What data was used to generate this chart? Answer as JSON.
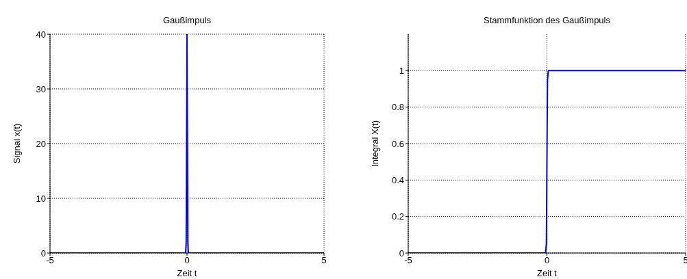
{
  "chart_data": [
    {
      "type": "line",
      "title": "Gaußimpuls",
      "xlabel": "Zeit t",
      "ylabel": "Signal x(t)",
      "x": [
        -5,
        -0.1,
        -0.05,
        -0.03,
        -0.015,
        0,
        0.015,
        0.03,
        0.05,
        0.1,
        5
      ],
      "series": [
        {
          "color": "#0000ff",
          "values": [
            0,
            0,
            0,
            2,
            20,
            40,
            20,
            2,
            0,
            0,
            0
          ]
        }
      ],
      "xlim": [
        -5,
        5
      ],
      "xticks": [
        -5,
        0,
        5
      ],
      "ylim": [
        0,
        40
      ],
      "yticks": [
        0,
        10,
        20,
        30,
        40
      ],
      "grid": true,
      "line_style": "solid",
      "marker": "none",
      "legend": false
    },
    {
      "type": "line",
      "title": "Stammfunktion des Gaußimpuls",
      "xlabel": "Zeit t",
      "ylabel": "Integral X(t)",
      "x": [
        -5,
        -0.05,
        -0.02,
        0,
        0.02,
        0.05,
        5
      ],
      "series": [
        {
          "color": "#0000ff",
          "values": [
            0,
            0,
            0.05,
            0.5,
            0.95,
            1,
            1
          ]
        }
      ],
      "xlim": [
        -5,
        5
      ],
      "xticks": [
        -5,
        0,
        5
      ],
      "ylim": [
        0,
        1.2
      ],
      "yticks": [
        0,
        0.2,
        0.4,
        0.6,
        0.8,
        1
      ],
      "grid": true,
      "line_style": "solid",
      "marker": "none",
      "legend": false
    }
  ]
}
